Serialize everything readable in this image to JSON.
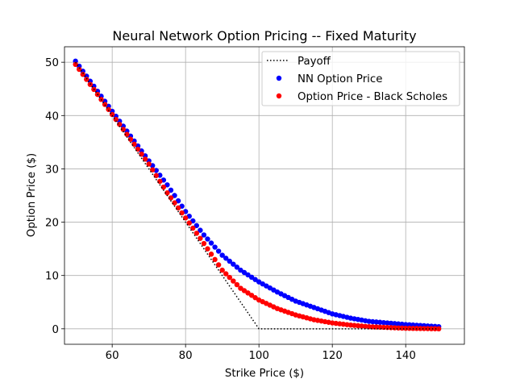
{
  "chart_data": {
    "type": "scatter",
    "title": "Neural Network Option Pricing -- Fixed Maturity",
    "xlabel": "Strike Price ($)",
    "ylabel": "Option Price ($)",
    "xlim": [
      47.0,
      156.0
    ],
    "ylim": [
      -2.9,
      52.9
    ],
    "xticks": [
      60,
      80,
      100,
      120,
      140
    ],
    "yticks": [
      0,
      10,
      20,
      30,
      40,
      50
    ],
    "grid": true,
    "legend_position": "upper-right",
    "strike_start": 50,
    "strike_end": 149,
    "strike_step": 1,
    "payoff_spot": 100,
    "series": [
      {
        "name": "Payoff",
        "kind": "line",
        "color": "#000000",
        "style": "dotted",
        "x": [
          50,
          100,
          149
        ],
        "y": [
          50,
          0,
          0
        ]
      },
      {
        "name": "NN Option Price",
        "kind": "scatter",
        "color": "#0000ff",
        "anchors_x": [
          50,
          60,
          70,
          75,
          80,
          85,
          90,
          95,
          100,
          105,
          110,
          115,
          120,
          125,
          130,
          140,
          149
        ],
        "anchors_y": [
          50.2,
          40.8,
          31.5,
          27.0,
          22.0,
          17.6,
          13.8,
          11.0,
          8.8,
          6.9,
          5.2,
          4.0,
          2.8,
          2.0,
          1.4,
          0.8,
          0.4
        ]
      },
      {
        "name": "Option Price - Black Scholes",
        "kind": "scatter",
        "color": "#ff0000",
        "anchors_x": [
          50,
          60,
          70,
          75,
          80,
          85,
          90,
          95,
          100,
          105,
          110,
          115,
          120,
          125,
          130,
          140,
          149
        ],
        "anchors_y": [
          49.6,
          40.2,
          30.9,
          25.5,
          20.8,
          16.0,
          11.0,
          7.6,
          5.4,
          3.8,
          2.6,
          1.7,
          1.1,
          0.7,
          0.4,
          0.1,
          0.0
        ]
      }
    ]
  }
}
